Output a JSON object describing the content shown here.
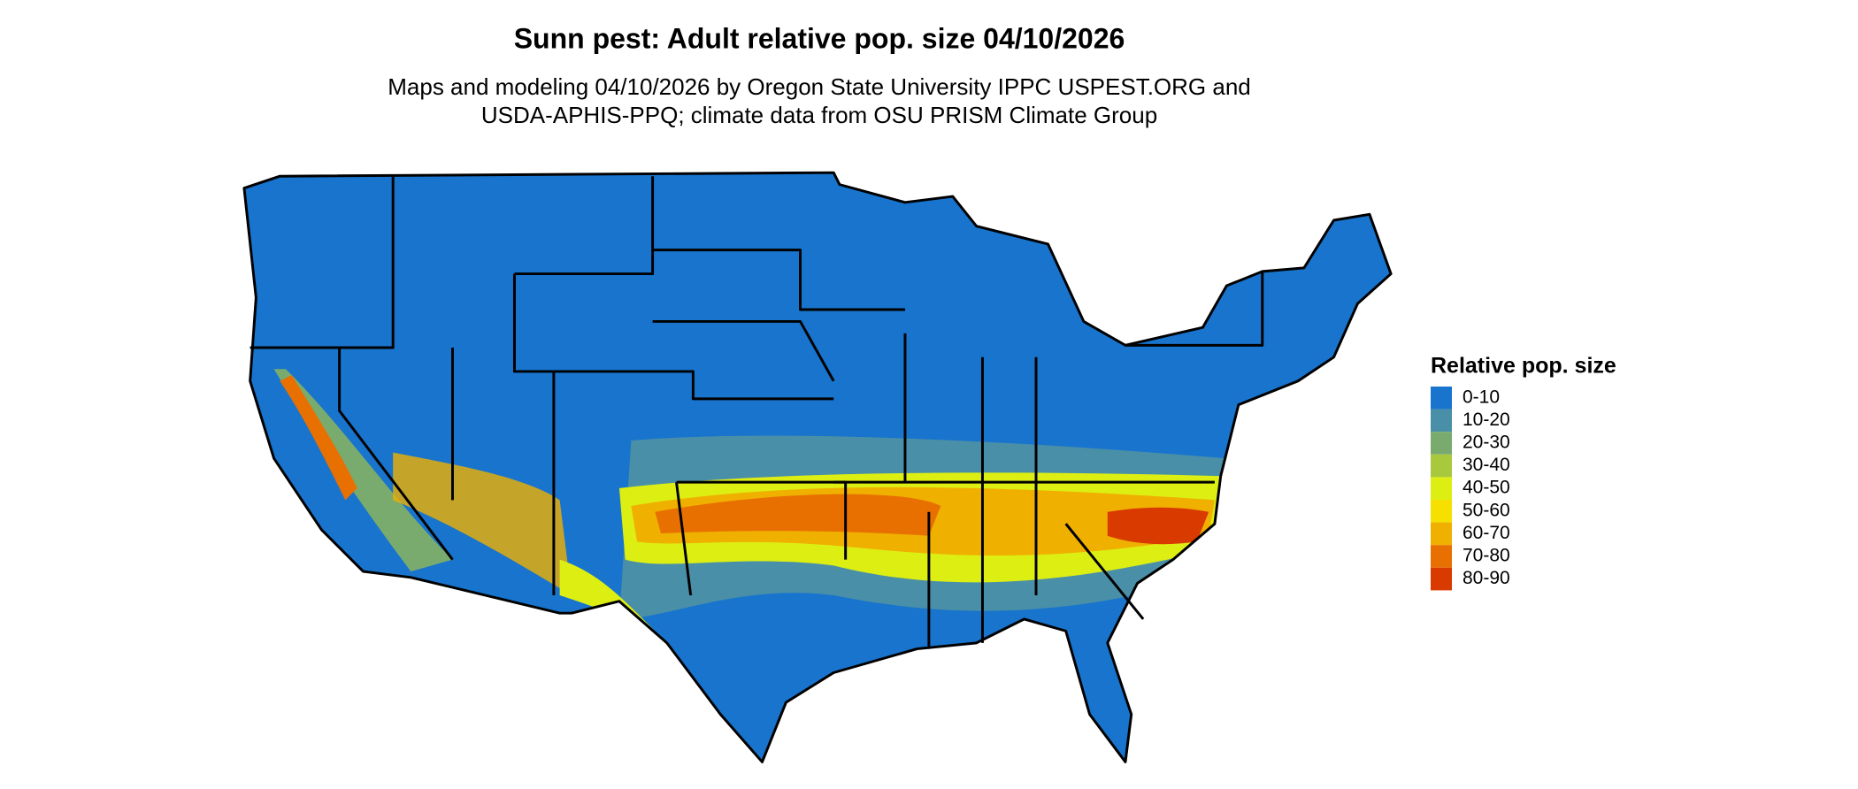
{
  "header": {
    "title": "Sunn pest: Adult relative pop. size 04/10/2026",
    "subtitle": [
      "Maps and modeling 04/10/2026 by Oregon State University IPPC USPEST.ORG and",
      "USDA-APHIS-PPQ; climate data from OSU PRISM Climate Group"
    ]
  },
  "legend": {
    "title": "Relative pop. size",
    "items": [
      {
        "label": "0-10",
        "color": "#1874cd"
      },
      {
        "label": "10-20",
        "color": "#4a8fa8"
      },
      {
        "label": "20-30",
        "color": "#7aab6e"
      },
      {
        "label": "30-40",
        "color": "#a8c83e"
      },
      {
        "label": "40-50",
        "color": "#dcee12"
      },
      {
        "label": "50-60",
        "color": "#f5e000"
      },
      {
        "label": "60-70",
        "color": "#f0b000"
      },
      {
        "label": "70-80",
        "color": "#e87000"
      },
      {
        "label": "80-90",
        "color": "#d83a00"
      }
    ]
  }
}
